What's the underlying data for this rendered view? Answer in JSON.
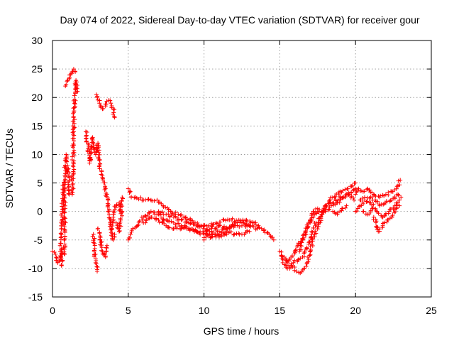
{
  "chart_data": {
    "type": "scatter",
    "title": "Day 074 of 2022, Sidereal Day-to-day VTEC variation (SDTVAR) for receiver gour",
    "xlabel": "GPS time / hours",
    "ylabel": "SDTVAR / TECUs",
    "xlim": [
      0,
      25
    ],
    "ylim": [
      -15,
      30
    ],
    "xticks": [
      0,
      5,
      10,
      15,
      20,
      25
    ],
    "yticks": [
      -15,
      -10,
      -5,
      0,
      5,
      10,
      15,
      20,
      25,
      30
    ],
    "grid": true,
    "marker": "+",
    "series": [
      {
        "name": "SDTVAR",
        "color": "#ff0000",
        "segments": [
          [
            [
              0.0,
              -7
            ],
            [
              0.2,
              -7.5
            ],
            [
              0.35,
              -9
            ],
            [
              0.5,
              -8.5
            ],
            [
              0.6,
              -6.5
            ],
            [
              0.6,
              -9.5
            ]
          ],
          [
            [
              0.5,
              -6
            ],
            [
              0.6,
              -3
            ],
            [
              0.65,
              0
            ],
            [
              0.7,
              3
            ],
            [
              0.75,
              5
            ]
          ],
          [
            [
              0.8,
              -7.5
            ],
            [
              0.8,
              4
            ],
            [
              0.85,
              8
            ],
            [
              0.9,
              10
            ],
            [
              0.95,
              7
            ],
            [
              1.05,
              7.5
            ],
            [
              1.1,
              3
            ]
          ],
          [
            [
              0.85,
              22
            ],
            [
              1.0,
              23
            ],
            [
              1.2,
              24
            ],
            [
              1.4,
              25
            ],
            [
              1.5,
              24.5
            ]
          ],
          [
            [
              1.3,
              3
            ],
            [
              1.35,
              8
            ],
            [
              1.4,
              14
            ],
            [
              1.45,
              19
            ],
            [
              1.55,
              23
            ],
            [
              1.6,
              21
            ]
          ],
          [
            [
              2.2,
              14
            ],
            [
              2.35,
              11
            ],
            [
              2.45,
              8.5
            ],
            [
              2.55,
              11
            ],
            [
              2.65,
              13
            ],
            [
              2.7,
              12
            ],
            [
              2.85,
              10
            ],
            [
              3.0,
              12
            ],
            [
              3.1,
              8
            ],
            [
              3.3,
              6
            ],
            [
              3.5,
              4
            ],
            [
              3.65,
              1
            ],
            [
              3.8,
              -2
            ],
            [
              4.0,
              -5
            ],
            [
              4.1,
              -4
            ]
          ],
          [
            [
              2.7,
              -4
            ],
            [
              2.75,
              -7
            ],
            [
              2.85,
              -9
            ],
            [
              2.95,
              -10.5
            ]
          ],
          [
            [
              3.0,
              -3
            ],
            [
              3.15,
              -5
            ],
            [
              3.3,
              -7
            ],
            [
              3.5,
              -8
            ],
            [
              3.6,
              -6
            ]
          ],
          [
            [
              2.9,
              20.5
            ],
            [
              3.1,
              19
            ],
            [
              3.3,
              18
            ],
            [
              3.5,
              18.5
            ],
            [
              3.7,
              19.5
            ],
            [
              3.85,
              19
            ],
            [
              4.0,
              18
            ],
            [
              4.1,
              16.5
            ]
          ],
          [
            [
              3.9,
              -3
            ],
            [
              4.0,
              -1
            ],
            [
              4.2,
              1
            ],
            [
              4.4,
              1.5
            ],
            [
              4.5,
              0
            ],
            [
              4.6,
              2.5
            ]
          ],
          [
            [
              4.2,
              -2
            ],
            [
              4.4,
              -3.5
            ],
            [
              4.5,
              -1.5
            ],
            [
              4.6,
              0
            ]
          ],
          [
            [
              5.0,
              4
            ],
            [
              5.2,
              2.5
            ],
            [
              5.5,
              2.5
            ],
            [
              6.0,
              2
            ],
            [
              6.5,
              2
            ],
            [
              6.9,
              2
            ],
            [
              7.3,
              1
            ],
            [
              7.8,
              0
            ],
            [
              8.3,
              -0.5
            ],
            [
              8.8,
              -1
            ],
            [
              9.3,
              -2
            ],
            [
              9.8,
              -2.5
            ],
            [
              10.3,
              -2.5
            ],
            [
              10.8,
              -2
            ],
            [
              11.3,
              -1.5
            ],
            [
              11.8,
              -1.5
            ],
            [
              12.3,
              -1.5
            ],
            [
              12.8,
              -1.5
            ],
            [
              13.3,
              -2
            ],
            [
              13.8,
              -3
            ],
            [
              14.3,
              -4
            ],
            [
              14.6,
              -5
            ]
          ],
          [
            [
              5.0,
              -5
            ],
            [
              5.3,
              -3
            ],
            [
              5.6,
              -2.5
            ],
            [
              6.0,
              -1
            ],
            [
              6.5,
              0
            ],
            [
              7.0,
              -0.5
            ],
            [
              7.5,
              -1.5
            ],
            [
              8.0,
              -2
            ],
            [
              8.5,
              -2.5
            ],
            [
              9.0,
              -3
            ],
            [
              9.5,
              -3.5
            ],
            [
              10.0,
              -3.5
            ],
            [
              10.5,
              -3.5
            ],
            [
              11.0,
              -3.5
            ],
            [
              11.5,
              -3
            ],
            [
              12.0,
              -2.5
            ],
            [
              12.5,
              -2.5
            ],
            [
              13.0,
              -2.5
            ]
          ],
          [
            [
              6.0,
              -2
            ],
            [
              6.5,
              -1
            ],
            [
              7.0,
              -1.5
            ],
            [
              7.5,
              -2.5
            ],
            [
              8.0,
              -3
            ],
            [
              8.5,
              -3
            ],
            [
              9.0,
              -3
            ],
            [
              9.5,
              -3.5
            ],
            [
              10.0,
              -4
            ],
            [
              10.5,
              -4.5
            ],
            [
              11.0,
              -4
            ],
            [
              11.5,
              -3.5
            ],
            [
              12.0,
              -4
            ],
            [
              12.5,
              -4
            ],
            [
              13.0,
              -3.5
            ]
          ],
          [
            [
              7.0,
              0
            ],
            [
              7.5,
              -0.5
            ],
            [
              8.0,
              -1
            ],
            [
              8.5,
              -1.5
            ],
            [
              9.0,
              -2
            ],
            [
              9.5,
              -2.5
            ],
            [
              10.0,
              -3
            ],
            [
              10.5,
              -3
            ],
            [
              11.0,
              -2.5
            ],
            [
              11.5,
              -3
            ],
            [
              12.0,
              -2
            ],
            [
              12.5,
              -2
            ],
            [
              13.0,
              -2.5
            ],
            [
              13.5,
              -3
            ]
          ],
          [
            [
              10.0,
              -5
            ],
            [
              10.2,
              -4
            ],
            [
              10.5,
              -4
            ],
            [
              11.0,
              -4.5
            ],
            [
              11.5,
              -4
            ]
          ],
          [
            [
              15.0,
              -7
            ],
            [
              15.2,
              -9
            ],
            [
              15.5,
              -10
            ],
            [
              15.8,
              -9.5
            ],
            [
              16.1,
              -10.5
            ],
            [
              16.35,
              -10.8
            ],
            [
              16.6,
              -10
            ],
            [
              16.8,
              -9
            ],
            [
              17.0,
              -7
            ],
            [
              17.3,
              -4
            ],
            [
              17.6,
              -2
            ],
            [
              17.8,
              0
            ],
            [
              18.0,
              1
            ],
            [
              18.3,
              2
            ],
            [
              18.6,
              2.5
            ],
            [
              19.0,
              3.5
            ],
            [
              19.5,
              4
            ],
            [
              19.8,
              4.5
            ],
            [
              20.0,
              5
            ]
          ],
          [
            [
              15.5,
              -9
            ],
            [
              15.8,
              -8
            ],
            [
              16.0,
              -7
            ],
            [
              16.2,
              -6
            ],
            [
              16.5,
              -5
            ],
            [
              16.8,
              -3
            ],
            [
              17.0,
              -2
            ],
            [
              17.2,
              0
            ],
            [
              17.5,
              0.5
            ],
            [
              17.8,
              -0.5
            ],
            [
              18.0,
              1
            ],
            [
              18.5,
              1.5
            ],
            [
              19.0,
              2.5
            ],
            [
              19.5,
              3
            ],
            [
              20.0,
              4
            ]
          ],
          [
            [
              15.3,
              -8
            ],
            [
              15.6,
              -9.5
            ],
            [
              15.9,
              -9
            ],
            [
              16.2,
              -8.5
            ],
            [
              16.5,
              -8
            ],
            [
              16.8,
              -6.5
            ],
            [
              17.1,
              -4
            ],
            [
              17.4,
              -2
            ],
            [
              17.7,
              -1
            ],
            [
              18.0,
              0
            ],
            [
              18.4,
              1
            ],
            [
              18.8,
              1.5
            ],
            [
              19.2,
              2.5
            ],
            [
              19.6,
              3
            ],
            [
              19.9,
              2
            ]
          ],
          [
            [
              16.3,
              -7
            ],
            [
              16.6,
              -4
            ],
            [
              16.9,
              -2
            ],
            [
              17.2,
              -1
            ],
            [
              17.5,
              0
            ]
          ],
          [
            [
              20.0,
              3
            ],
            [
              20.2,
              4
            ],
            [
              20.5,
              3.5
            ],
            [
              20.8,
              4
            ],
            [
              21.2,
              3
            ],
            [
              21.6,
              2.5
            ],
            [
              22.0,
              3
            ],
            [
              22.4,
              3.5
            ],
            [
              22.8,
              4.5
            ],
            [
              22.95,
              5.5
            ]
          ],
          [
            [
              20.0,
              0
            ],
            [
              20.3,
              1
            ],
            [
              20.6,
              2
            ],
            [
              21.0,
              1.5
            ],
            [
              21.4,
              0
            ],
            [
              21.8,
              -1
            ],
            [
              22.2,
              0
            ],
            [
              22.6,
              1
            ],
            [
              22.9,
              2
            ]
          ],
          [
            [
              20.3,
              2
            ],
            [
              20.6,
              2.5
            ],
            [
              21.0,
              2.5
            ],
            [
              21.3,
              2
            ],
            [
              21.6,
              1
            ],
            [
              22.0,
              1.5
            ],
            [
              22.4,
              2
            ],
            [
              22.8,
              3
            ],
            [
              23.0,
              2.5
            ]
          ],
          [
            [
              21.2,
              -1
            ],
            [
              21.5,
              -3.5
            ],
            [
              21.8,
              -2.5
            ],
            [
              22.1,
              -1.5
            ],
            [
              22.4,
              -1
            ],
            [
              22.7,
              0.5
            ],
            [
              22.9,
              1
            ]
          ],
          [
            [
              18.5,
              0
            ],
            [
              18.8,
              -0.5
            ],
            [
              19.1,
              0.5
            ],
            [
              19.4,
              1
            ]
          ],
          [
            [
              20.5,
              0
            ],
            [
              20.8,
              -0.5
            ],
            [
              21.1,
              0.5
            ]
          ]
        ]
      }
    ]
  }
}
